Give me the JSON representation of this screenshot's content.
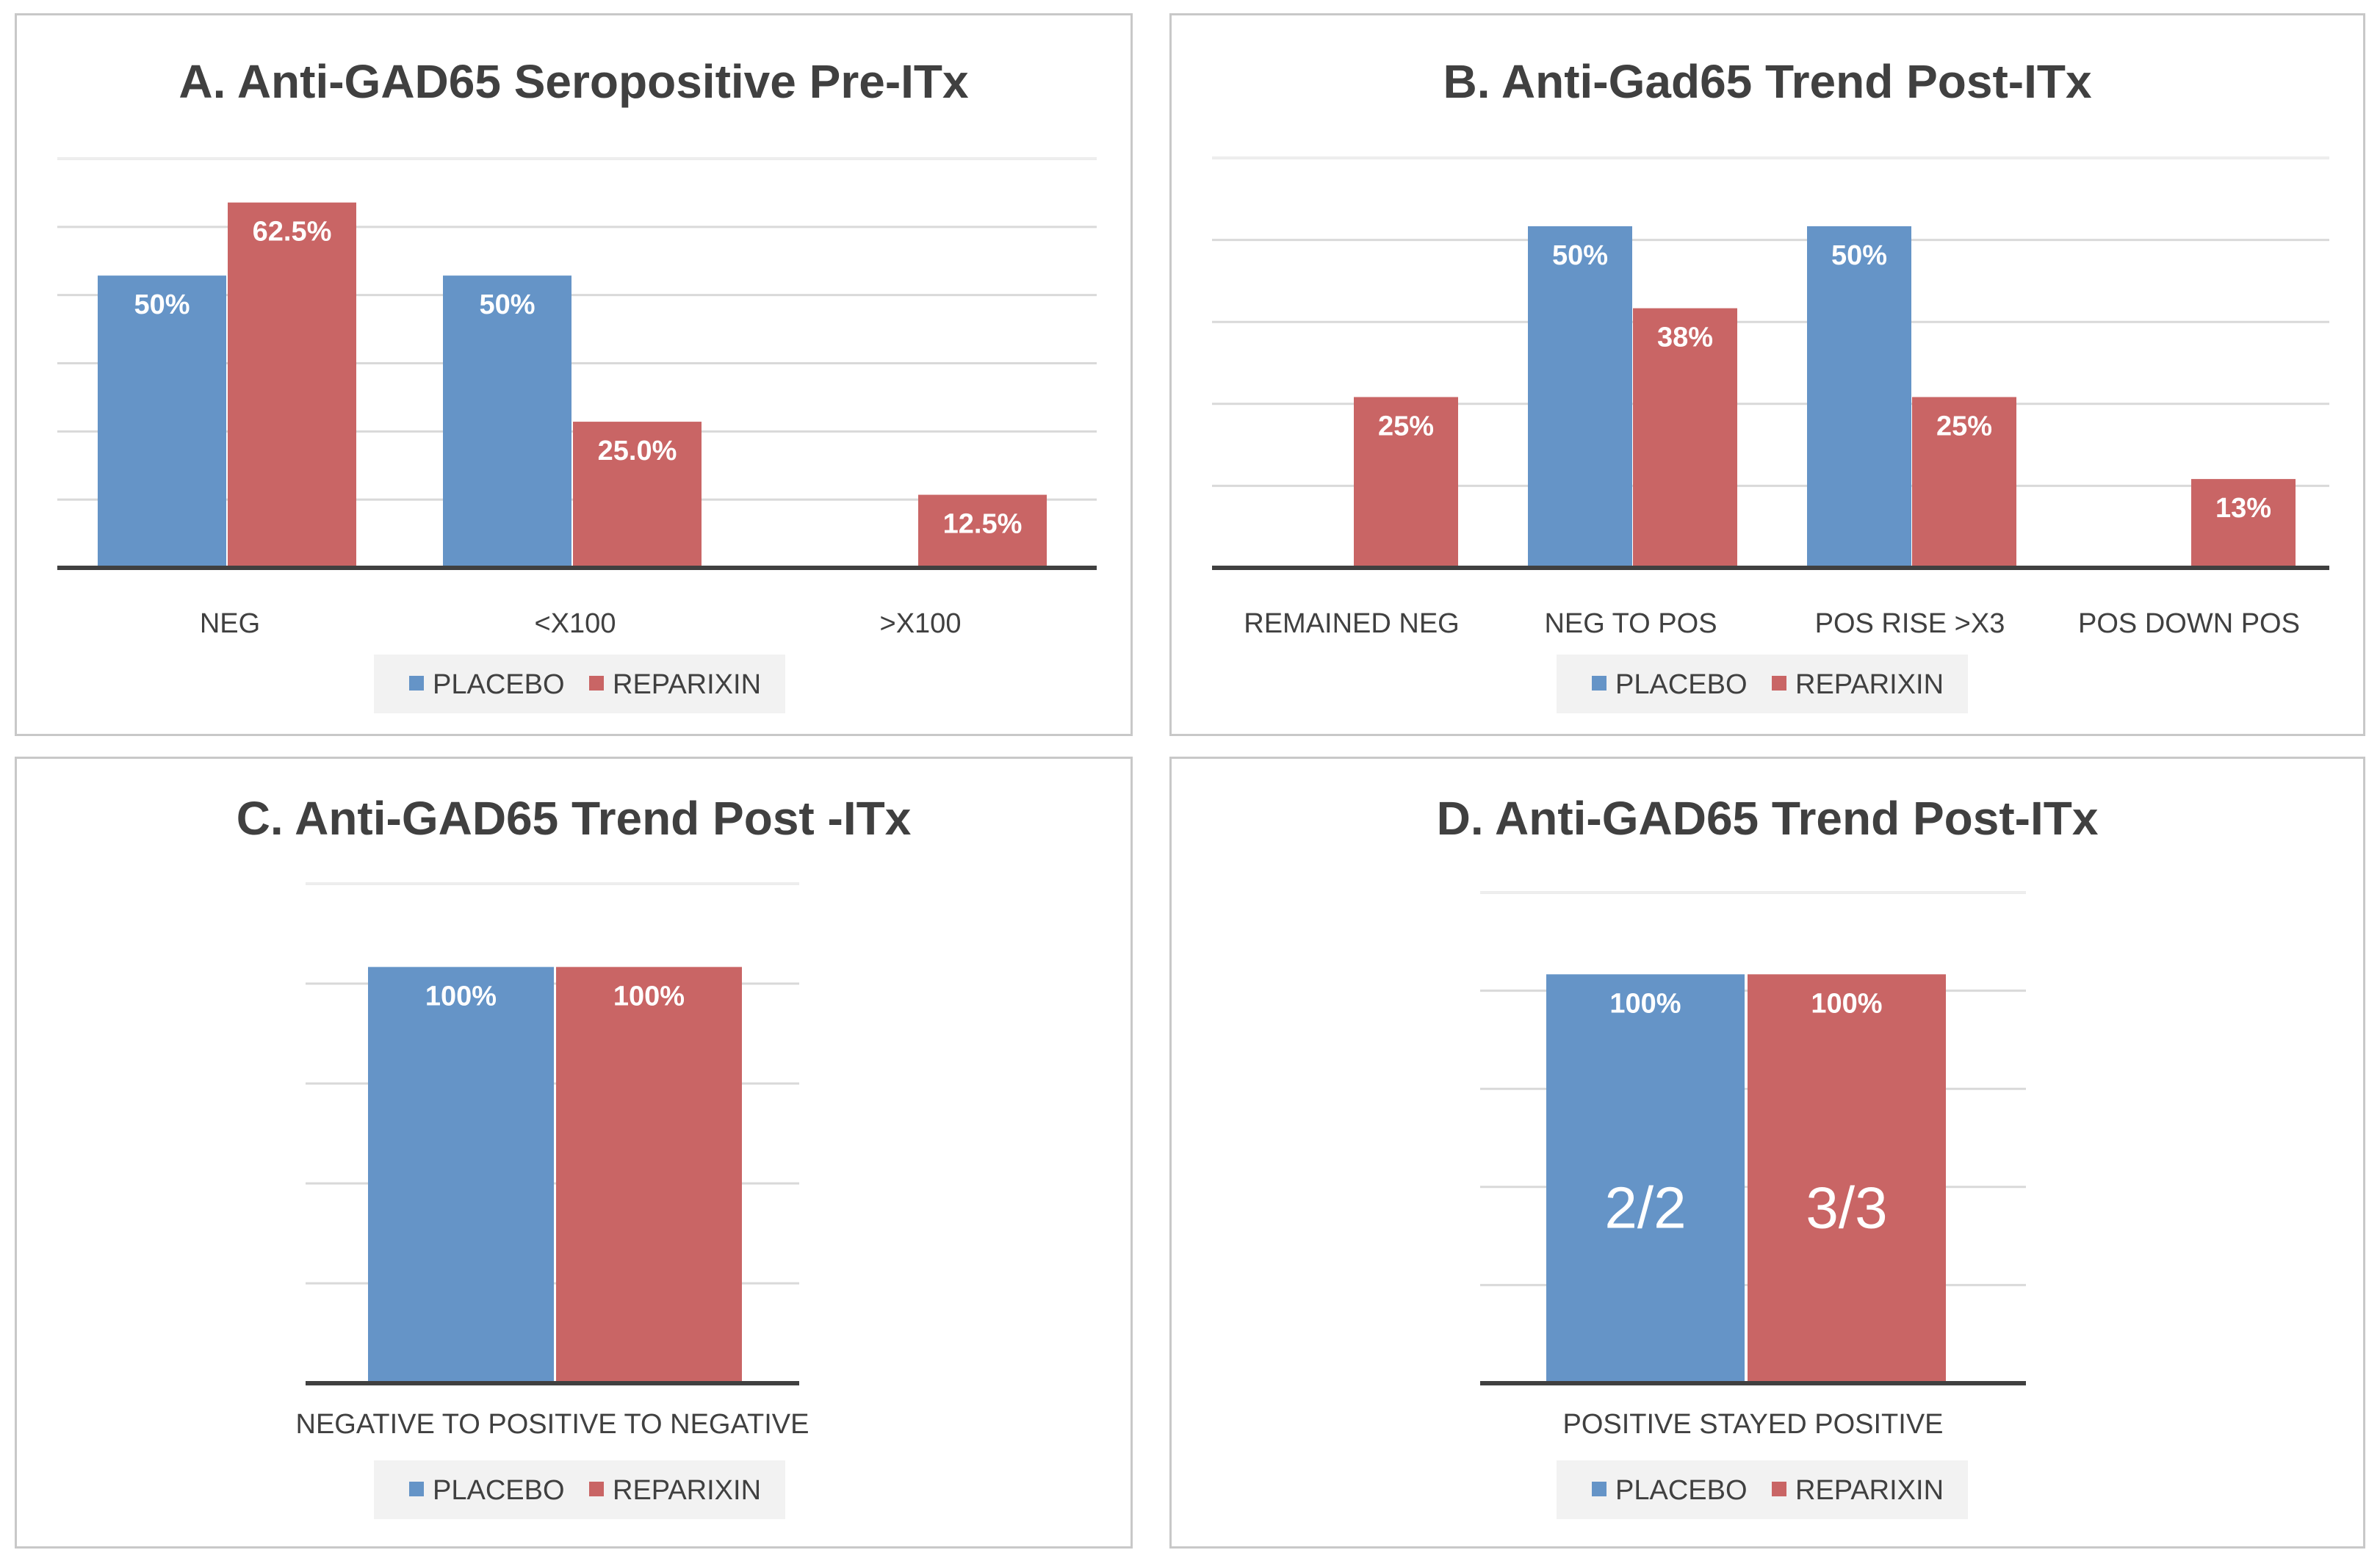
{
  "colors": {
    "placebo": "#6594c7",
    "reparixin": "#c96565",
    "grid": "#d9d9d9",
    "axis": "#404040",
    "legend_bg": "#f2f2f2"
  },
  "chart_data": [
    {
      "id": "a",
      "type": "bar",
      "title": "A. Anti-GAD65 Seropositive  Pre-ITx",
      "categories": [
        "NEG",
        "<X100",
        ">X100"
      ],
      "series": [
        {
          "name": "PLACEBO",
          "values": [
            50,
            50,
            null
          ],
          "labels": [
            "50%",
            "50%",
            ""
          ]
        },
        {
          "name": "REPARIXIN",
          "values": [
            62.5,
            25.0,
            12.5
          ],
          "labels": [
            "62.5%",
            "25.0%",
            "12.5%"
          ]
        }
      ],
      "ylim": [
        0,
        70
      ],
      "legend": "bottom"
    },
    {
      "id": "b",
      "type": "bar",
      "title": "B. Anti-Gad65 Trend Post-ITx",
      "categories": [
        "REMAINED NEG",
        "NEG TO POS",
        "POS RISE >X3",
        "POS DOWN POS"
      ],
      "series": [
        {
          "name": "PLACEBO",
          "values": [
            null,
            50,
            50,
            null
          ],
          "labels": [
            "",
            "50%",
            "50%",
            ""
          ]
        },
        {
          "name": "REPARIXIN",
          "values": [
            25,
            38,
            25,
            13
          ],
          "labels": [
            "25%",
            "38%",
            "25%",
            "13%"
          ]
        }
      ],
      "ylim": [
        0,
        60
      ],
      "legend": "bottom"
    },
    {
      "id": "c",
      "type": "bar",
      "title": "C. Anti-GAD65 Trend Post -ITx",
      "categories": [
        "NEGATIVE TO POSITIVE TO NEGATIVE"
      ],
      "series": [
        {
          "name": "PLACEBO",
          "values": [
            100
          ],
          "labels": [
            "100%"
          ]
        },
        {
          "name": "REPARIXIN",
          "values": [
            100
          ],
          "labels": [
            "100%"
          ]
        }
      ],
      "ylim": [
        0,
        120
      ],
      "legend": "bottom"
    },
    {
      "id": "d",
      "type": "bar",
      "title": "D. Anti-GAD65 Trend Post-ITx",
      "categories": [
        "POSITIVE STAYED POSITIVE"
      ],
      "series": [
        {
          "name": "PLACEBO",
          "values": [
            100
          ],
          "labels": [
            "100%"
          ],
          "annotations": [
            "2/2"
          ]
        },
        {
          "name": "REPARIXIN",
          "values": [
            100
          ],
          "labels": [
            "100%"
          ],
          "annotations": [
            "3/3"
          ]
        }
      ],
      "ylim": [
        0,
        120
      ],
      "legend": "bottom"
    }
  ]
}
